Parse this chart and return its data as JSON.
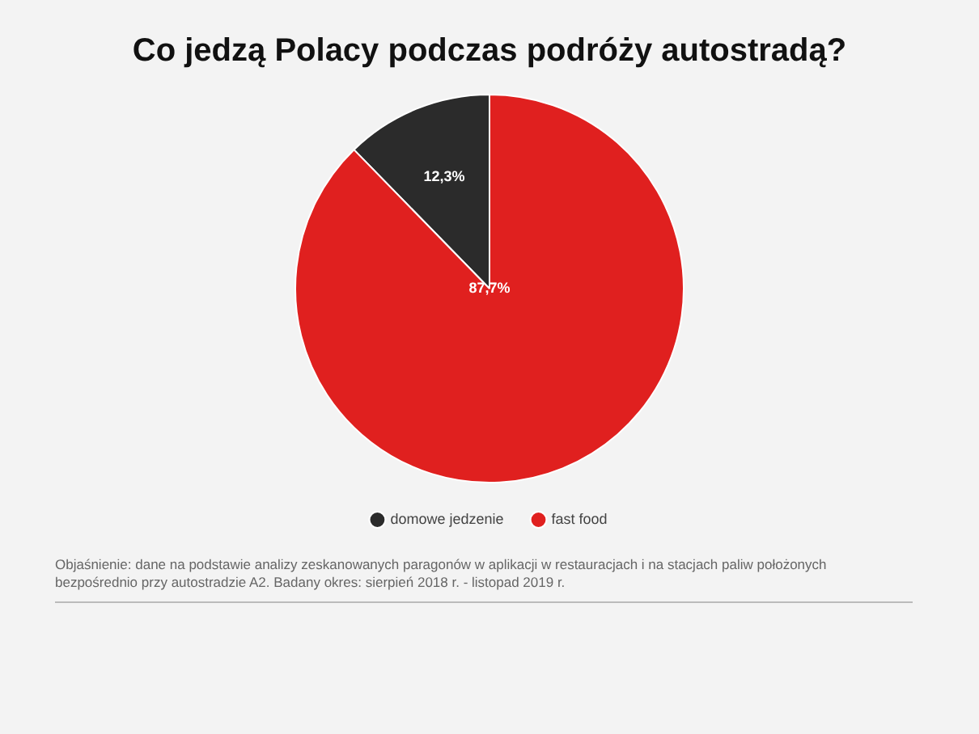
{
  "chart_data": {
    "type": "pie",
    "title": "Co jedzą Polacy podczas podróży autostradą?",
    "categories": [
      "domowe jedzenie",
      "fast food"
    ],
    "values": [
      12.3,
      87.7
    ],
    "colors": [
      "#2b2b2b",
      "#e0201f"
    ],
    "value_labels": [
      "12,3%",
      "87,7%"
    ],
    "legend": "bottom",
    "annotations": [
      "Objaśnienie: dane na podstawie analizy zeskanowanych paragonów w aplikacji w restauracjach i na stacjach paliw położonych bezpośrednio przy autostradzie A2. Badany okres: sierpień 2018 r. - listopad 2019 r."
    ]
  }
}
